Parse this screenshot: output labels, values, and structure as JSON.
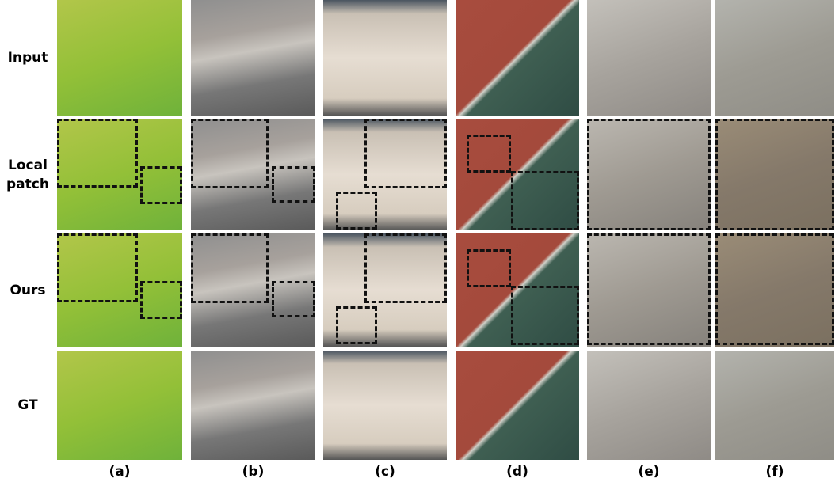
{
  "rows": [
    "Input",
    "Local patch",
    "Ours",
    "GT"
  ],
  "columns": [
    "(a)",
    "(b)",
    "(c)",
    "(d)",
    "(e)",
    "(f)"
  ]
}
